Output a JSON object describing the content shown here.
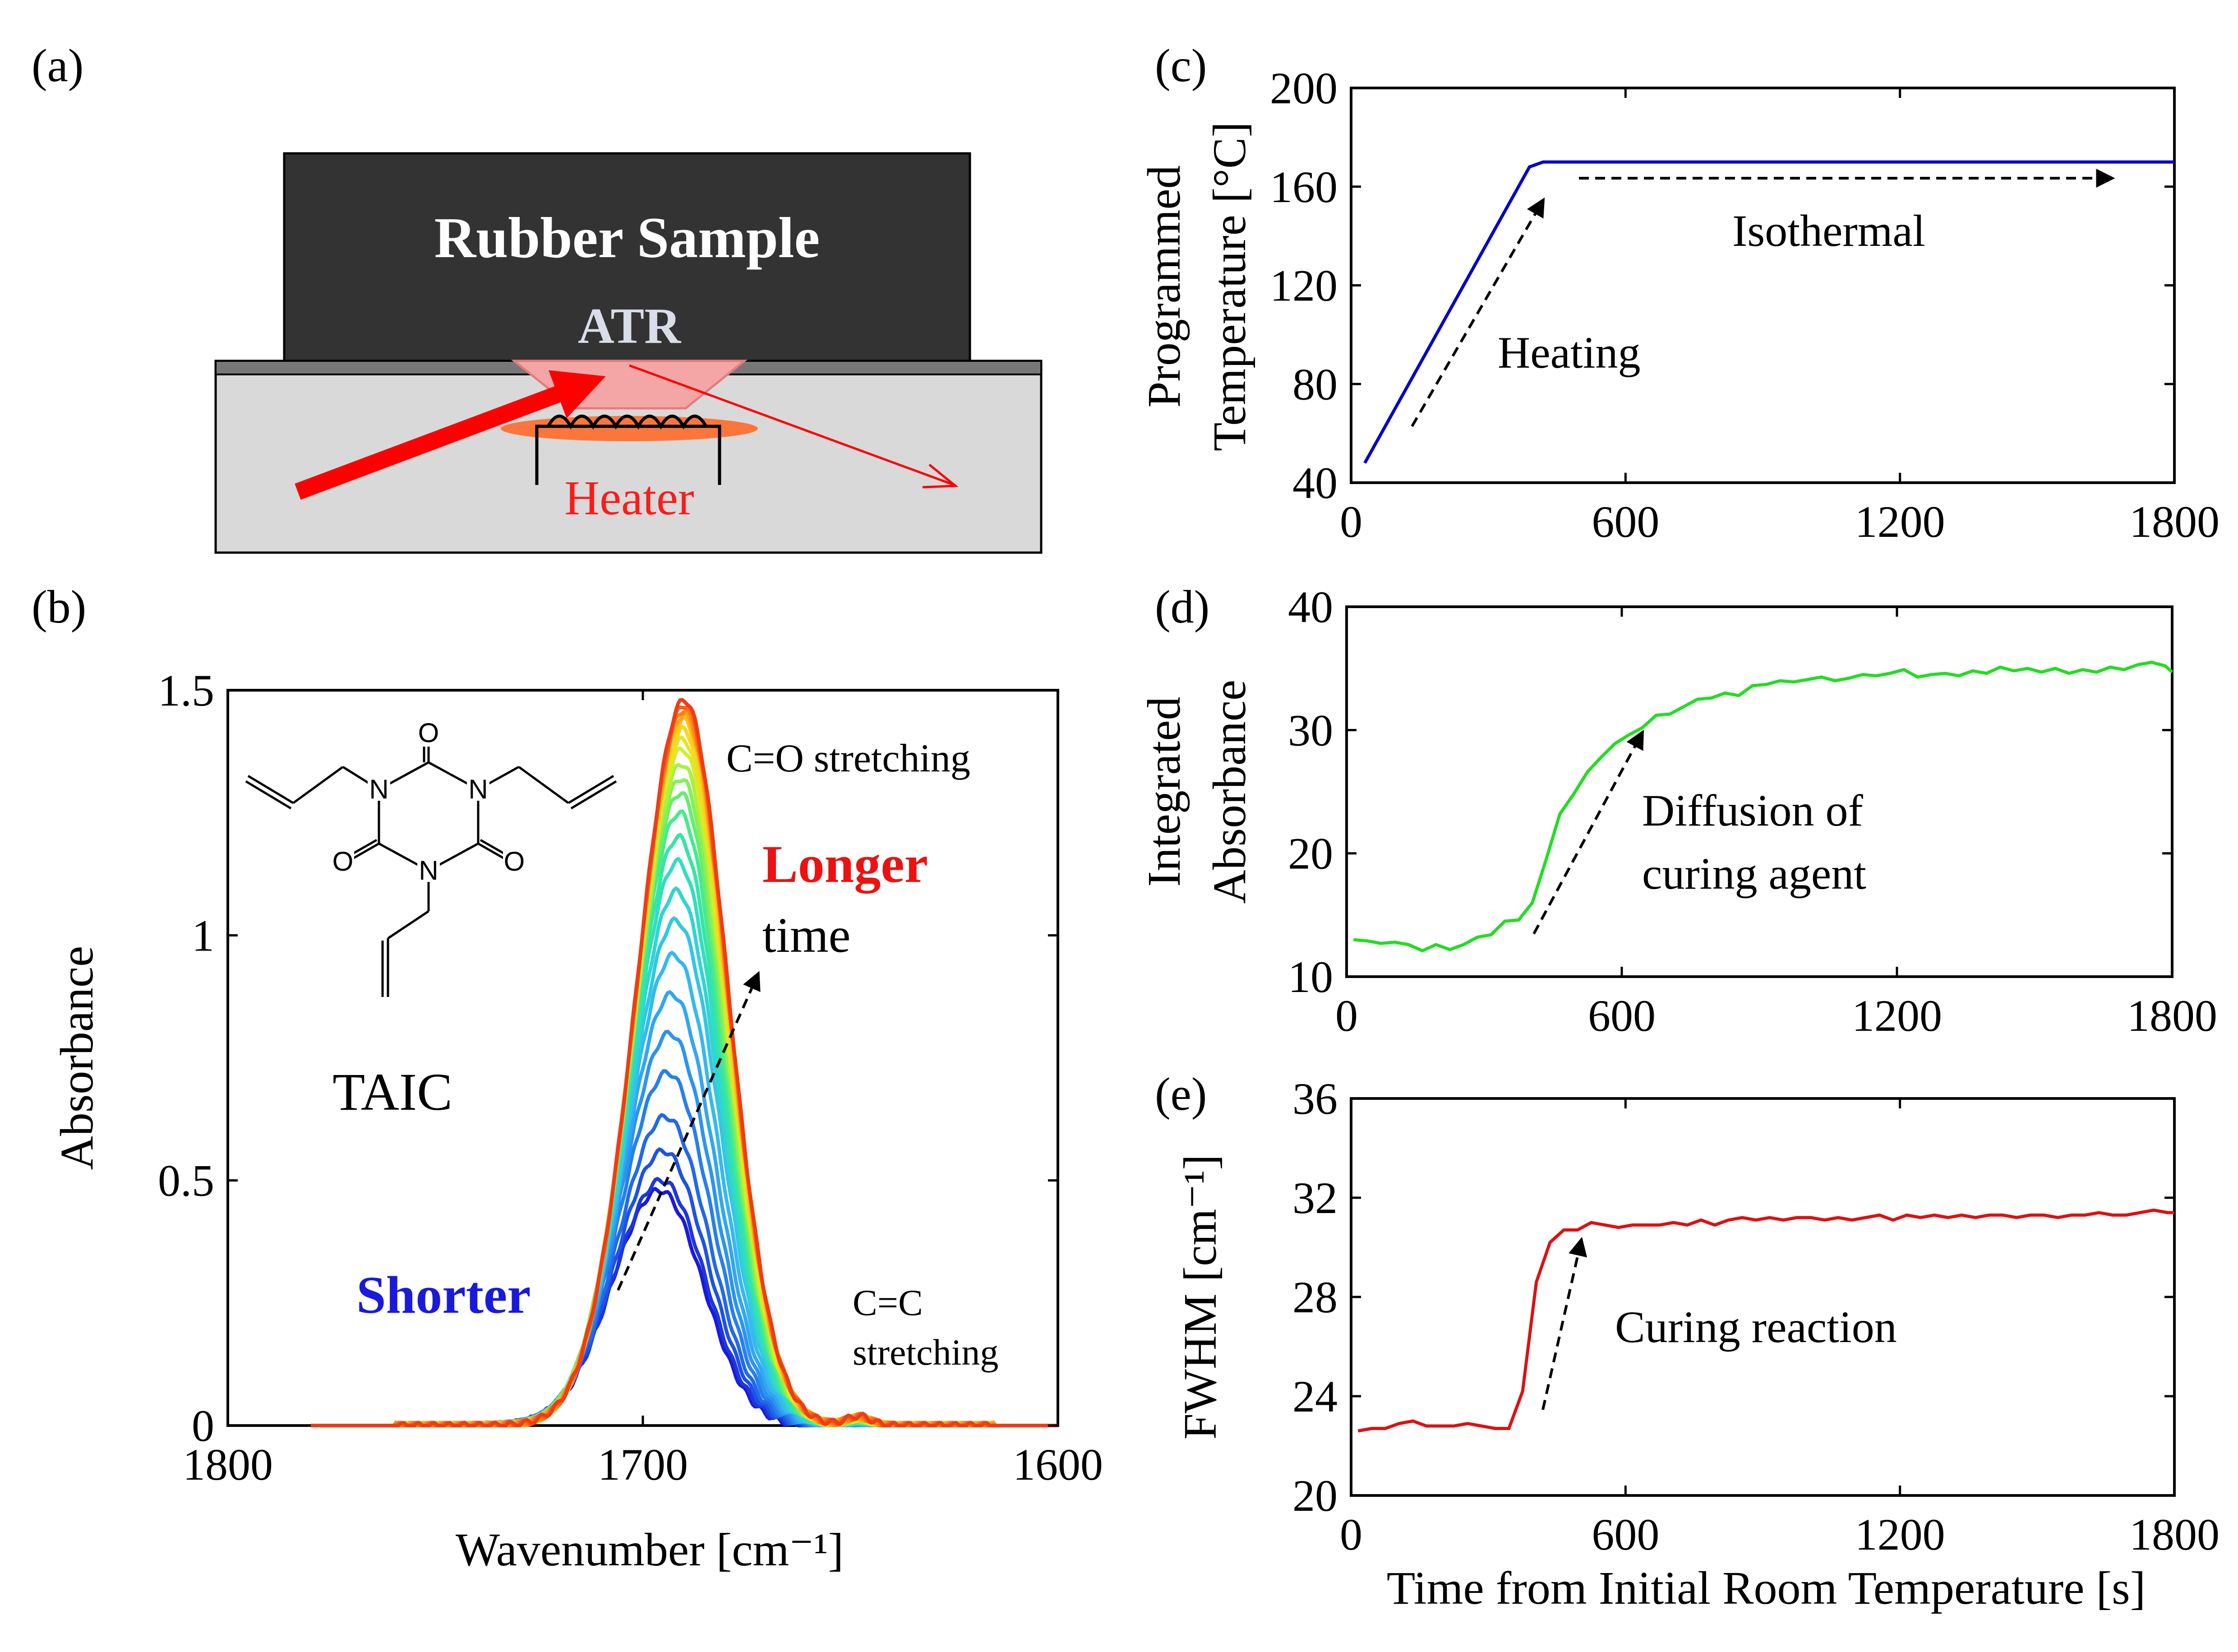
{
  "panel_labels": {
    "a": "(a)",
    "b": "(b)",
    "c": "(c)",
    "d": "(d)",
    "e": "(e)"
  },
  "diagram": {
    "sample_label": "Rubber Sample",
    "atr_label": "ATR",
    "heater_label": "Heater",
    "colors": {
      "sample": "#333333",
      "base": "#d9d9d9",
      "prism": "#f4a6a6",
      "beam": "#ff0000",
      "heater": "#ff6a2a"
    }
  },
  "chart_data": [
    {
      "id": "b",
      "type": "line",
      "xlabel": "Wavenumber [cm⁻¹]",
      "ylabel": "Absorbance",
      "xlim": [
        1800,
        1600
      ],
      "ylim": [
        0,
        1.5
      ],
      "xticks": [
        "1800",
        "1700",
        "1600"
      ],
      "yticks": [
        "0",
        "0.5",
        "1",
        "1.5"
      ],
      "x_reversed": true,
      "peak_center": 1690,
      "peak_heights": [
        0.48,
        0.5,
        0.56,
        0.63,
        0.72,
        0.8,
        0.88,
        0.96,
        1.03,
        1.09,
        1.15,
        1.2,
        1.25,
        1.29,
        1.32,
        1.35,
        1.38,
        1.4,
        1.42,
        1.44,
        1.45,
        1.46,
        1.47,
        1.48
      ],
      "peak_positions": [
        1696,
        1695.5,
        1695,
        1694.5,
        1694,
        1693.5,
        1693,
        1692.5,
        1692,
        1691.8,
        1691.6,
        1691.4,
        1691.2,
        1691,
        1690.8,
        1690.6,
        1690.5,
        1690.4,
        1690.3,
        1690.2,
        1690.1,
        1690.05,
        1690,
        1690
      ],
      "colormap": [
        "#1a1adc",
        "#1e5ae6",
        "#2a8cf0",
        "#35b8f0",
        "#2ed8d0",
        "#38e89a",
        "#7ff05a",
        "#d4f02a",
        "#ffd21a",
        "#ff8c14",
        "#f03c14"
      ],
      "annotations": {
        "molecule": "TAIC",
        "co_stretch": "C=O stretching",
        "cc_stretch_1": "C=C",
        "cc_stretch_2": "stretching",
        "longer": "Longer",
        "time": "time",
        "shorter": "Shorter"
      }
    },
    {
      "id": "c",
      "type": "line",
      "xlabel": "",
      "ylabel_1": "Programmed",
      "ylabel_2": "Temperature [°C]",
      "xlim": [
        0,
        1800
      ],
      "ylim": [
        40,
        200
      ],
      "xticks": [
        "0",
        "600",
        "1200",
        "1800"
      ],
      "yticks": [
        "40",
        "80",
        "120",
        "160",
        "200"
      ],
      "color": "#0000cc",
      "x": [
        30,
        390,
        420,
        1800
      ],
      "y": [
        48,
        168,
        170,
        170
      ],
      "annotations": {
        "heating": "Heating",
        "isothermal": "Isothermal"
      }
    },
    {
      "id": "d",
      "type": "line",
      "xlabel": "",
      "ylabel_1": "Integrated",
      "ylabel_2": "Absorbance",
      "xlim": [
        0,
        1800
      ],
      "ylim": [
        10,
        40
      ],
      "xticks": [
        "0",
        "600",
        "1200",
        "1800"
      ],
      "yticks": [
        "10",
        "20",
        "30",
        "40"
      ],
      "color": "#22dd22",
      "x": [
        15,
        45,
        75,
        105,
        135,
        165,
        195,
        225,
        255,
        285,
        315,
        345,
        375,
        405,
        435,
        465,
        495,
        525,
        555,
        585,
        615,
        645,
        675,
        705,
        735,
        765,
        795,
        825,
        855,
        885,
        915,
        945,
        975,
        1005,
        1035,
        1065,
        1095,
        1125,
        1155,
        1185,
        1215,
        1245,
        1275,
        1305,
        1335,
        1365,
        1395,
        1425,
        1455,
        1485,
        1515,
        1545,
        1575,
        1605,
        1635,
        1665,
        1695,
        1725,
        1755,
        1785,
        1800
      ],
      "y": [
        13.0,
        12.9,
        12.7,
        12.8,
        12.6,
        12.1,
        12.6,
        12.2,
        12.6,
        13.2,
        13.4,
        14.5,
        14.6,
        16.0,
        19.5,
        23.2,
        24.8,
        26.6,
        27.8,
        28.9,
        29.6,
        30.2,
        31.2,
        31.3,
        31.9,
        32.5,
        32.6,
        33.0,
        32.8,
        33.6,
        33.7,
        34.0,
        33.9,
        34.1,
        34.3,
        34.0,
        34.2,
        34.5,
        34.4,
        34.6,
        34.9,
        34.3,
        34.5,
        34.6,
        34.4,
        34.8,
        34.6,
        35.1,
        34.8,
        35.0,
        34.7,
        35.0,
        34.6,
        34.9,
        34.7,
        35.1,
        34.9,
        35.3,
        35.5,
        35.2,
        34.7
      ],
      "annotations": {
        "line1": "Diffusion of",
        "line2": "curing agent"
      }
    },
    {
      "id": "e",
      "type": "line",
      "xlabel": "Time from Initial Room Temperature [s]",
      "ylabel": "FWHM [cm⁻¹]",
      "xlim": [
        0,
        1800
      ],
      "ylim": [
        20,
        36
      ],
      "xticks": [
        "0",
        "600",
        "1200",
        "1800"
      ],
      "yticks": [
        "20",
        "24",
        "28",
        "32",
        "36"
      ],
      "color": "#dd1111",
      "x": [
        15,
        45,
        75,
        105,
        135,
        165,
        195,
        225,
        255,
        285,
        315,
        345,
        375,
        405,
        435,
        465,
        495,
        525,
        555,
        585,
        615,
        645,
        675,
        705,
        735,
        765,
        795,
        825,
        855,
        885,
        915,
        945,
        975,
        1005,
        1035,
        1065,
        1095,
        1125,
        1155,
        1185,
        1215,
        1245,
        1275,
        1305,
        1335,
        1365,
        1395,
        1425,
        1455,
        1485,
        1515,
        1545,
        1575,
        1605,
        1635,
        1665,
        1695,
        1725,
        1755,
        1785,
        1800
      ],
      "y": [
        22.6,
        22.7,
        22.7,
        22.9,
        23.0,
        22.8,
        22.8,
        22.8,
        22.9,
        22.8,
        22.7,
        22.7,
        24.2,
        28.6,
        30.2,
        30.7,
        30.7,
        31.0,
        30.9,
        30.8,
        30.9,
        30.9,
        30.9,
        31.0,
        30.9,
        31.1,
        30.9,
        31.1,
        31.2,
        31.1,
        31.2,
        31.1,
        31.2,
        31.2,
        31.1,
        31.2,
        31.1,
        31.2,
        31.3,
        31.1,
        31.3,
        31.2,
        31.3,
        31.2,
        31.3,
        31.2,
        31.3,
        31.3,
        31.2,
        31.3,
        31.3,
        31.2,
        31.3,
        31.3,
        31.4,
        31.3,
        31.3,
        31.4,
        31.5,
        31.4,
        31.4
      ],
      "annotations": {
        "curing": "Curing reaction"
      }
    }
  ]
}
